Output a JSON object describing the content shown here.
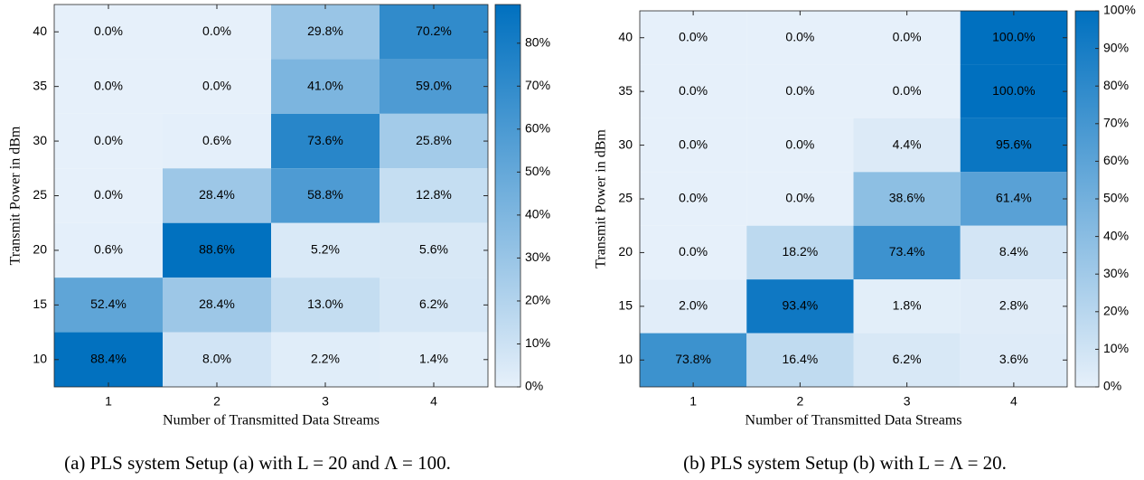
{
  "chart_data": [
    {
      "type": "heatmap",
      "x_label": "Number of Transmitted Data Streams",
      "y_label": "Transmit Power in dBm",
      "caption": "(a) PLS system Setup (a) with L = 20 and Λ = 100.",
      "x_categories": [
        "1",
        "2",
        "3",
        "4"
      ],
      "y_categories": [
        "40",
        "35",
        "30",
        "25",
        "20",
        "15",
        "10"
      ],
      "values": [
        [
          0,
          0,
          29.8,
          70.2
        ],
        [
          0,
          0,
          41,
          59
        ],
        [
          0,
          0.6,
          73.6,
          25.8
        ],
        [
          0,
          28.4,
          58.8,
          12.8
        ],
        [
          0.6,
          88.6,
          5.2,
          5.6
        ],
        [
          52.4,
          28.4,
          13.0,
          6.2
        ],
        [
          88.4,
          8.0,
          2.2,
          1.4
        ]
      ],
      "value_labels": [
        [
          "0.0%",
          "0.0%",
          "29.8%",
          "70.2%"
        ],
        [
          "0.0%",
          "0.0%",
          "41.0%",
          "59.0%"
        ],
        [
          "0.0%",
          "0.6%",
          "73.6%",
          "25.8%"
        ],
        [
          "0.0%",
          "28.4%",
          "58.8%",
          "12.8%"
        ],
        [
          "0.6%",
          "88.6%",
          "5.2%",
          "5.6%"
        ],
        [
          "52.4%",
          "28.4%",
          "13.0%",
          "6.2%"
        ],
        [
          "88.4%",
          "8.0%",
          "2.2%",
          "1.4%"
        ]
      ],
      "colormap": [
        "#e6f0fa",
        "#0070bf"
      ],
      "clim": [
        0,
        89
      ],
      "cticks": [
        {
          "value": 0,
          "label": "0%"
        },
        {
          "value": 10,
          "label": "10%"
        },
        {
          "value": 20,
          "label": "20%"
        },
        {
          "value": 30,
          "label": "30%"
        },
        {
          "value": 40,
          "label": "40%"
        },
        {
          "value": 50,
          "label": "50%"
        },
        {
          "value": 60,
          "label": "60%"
        },
        {
          "value": 70,
          "label": "70%"
        },
        {
          "value": 80,
          "label": "80%"
        }
      ]
    },
    {
      "type": "heatmap",
      "x_label": "Number of Transmitted Data Streams",
      "y_label": "Transmit Power in dBm",
      "caption": "(b) PLS system Setup (b) with L = Λ = 20.",
      "x_categories": [
        "1",
        "2",
        "3",
        "4"
      ],
      "y_categories": [
        "40",
        "35",
        "30",
        "25",
        "20",
        "15",
        "10"
      ],
      "values": [
        [
          0,
          0,
          0,
          100
        ],
        [
          0,
          0,
          0,
          100
        ],
        [
          0,
          0,
          4.4,
          95.6
        ],
        [
          0,
          0,
          38.6,
          61.4
        ],
        [
          0,
          18.2,
          73.4,
          8.4
        ],
        [
          2.0,
          93.4,
          1.8,
          2.8
        ],
        [
          73.8,
          16.4,
          6.2,
          3.6
        ]
      ],
      "value_labels": [
        [
          "0.0%",
          "0.0%",
          "0.0%",
          "100.0%"
        ],
        [
          "0.0%",
          "0.0%",
          "0.0%",
          "100.0%"
        ],
        [
          "0.0%",
          "0.0%",
          "4.4%",
          "95.6%"
        ],
        [
          "0.0%",
          "0.0%",
          "38.6%",
          "61.4%"
        ],
        [
          "0.0%",
          "18.2%",
          "73.4%",
          "8.4%"
        ],
        [
          "2.0%",
          "93.4%",
          "1.8%",
          "2.8%"
        ],
        [
          "73.8%",
          "16.4%",
          "6.2%",
          "3.6%"
        ]
      ],
      "colormap": [
        "#e6f0fa",
        "#0070bf"
      ],
      "clim": [
        0,
        100
      ],
      "cticks": [
        {
          "value": 0,
          "label": "0%"
        },
        {
          "value": 10,
          "label": "10%"
        },
        {
          "value": 20,
          "label": "20%"
        },
        {
          "value": 30,
          "label": "30%"
        },
        {
          "value": 40,
          "label": "40%"
        },
        {
          "value": 50,
          "label": "50%"
        },
        {
          "value": 60,
          "label": "60%"
        },
        {
          "value": 70,
          "label": "70%"
        },
        {
          "value": 80,
          "label": "80%"
        },
        {
          "value": 90,
          "label": "90%"
        },
        {
          "value": 100,
          "label": "100%"
        }
      ]
    }
  ]
}
